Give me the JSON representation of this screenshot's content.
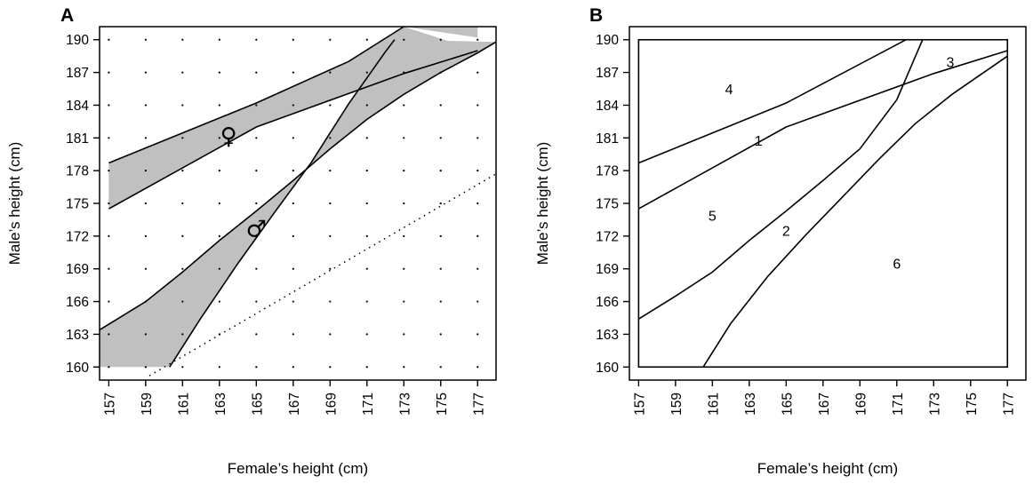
{
  "chart_data": [
    {
      "panel": "A",
      "type": "area",
      "xlabel": "Female’s height (cm)",
      "ylabel": "Male’s height (cm)",
      "xlim": [
        156.5,
        178
      ],
      "ylim": [
        158.8,
        191.2
      ],
      "xticks": [
        157,
        159,
        161,
        163,
        165,
        167,
        169,
        171,
        173,
        175,
        177
      ],
      "yticks": [
        160,
        163,
        166,
        169,
        172,
        175,
        178,
        181,
        184,
        187,
        190
      ],
      "dot_grid": true,
      "bands": [
        {
          "symbol": "♀",
          "fill": "#c0c0c0",
          "lower": {
            "x": [
              157,
              165,
              173,
              177
            ],
            "y": [
              174.5,
              182.0,
              186.9,
              189.0
            ]
          },
          "upper": {
            "x": [
              157,
              165,
              170,
              173
            ],
            "y": [
              178.7,
              184.2,
              188.0,
              191.2
            ]
          },
          "symbol_position": {
            "x": 163.5,
            "y": 181.2
          }
        },
        {
          "symbol": "♂",
          "fill": "#c0c0c0",
          "lower": {
            "x": [
              156.5,
              159,
              161,
              163,
              165,
              167,
              169,
              171,
              173,
              175,
              177,
              178
            ],
            "y": [
              163.4,
              166.0,
              168.7,
              171.6,
              174.3,
              177.1,
              180.0,
              182.7,
              185.0,
              187.0,
              188.8,
              189.8
            ]
          },
          "upper": {
            "x": [
              160.3,
              162,
              164,
              166,
              168,
              170,
              172,
              172.5
            ],
            "y": [
              160.0,
              164.5,
              169.5,
              174.2,
              178.8,
              184.1,
              188.9,
              190.0
            ]
          },
          "symbol_position": {
            "x": 165,
            "y": 172.7
          }
        }
      ],
      "fill_corners": [
        {
          "x": [
            156.5,
            160.3,
            156.5
          ],
          "y": [
            160.0,
            160.0,
            163.4
          ]
        },
        {
          "x": [
            157,
            157,
            158.2
          ],
          "y": [
            174.5,
            178.7,
            179.3
          ]
        },
        {
          "x": [
            173,
            177,
            177
          ],
          "y": [
            191.2,
            191.2,
            190.2
          ]
        }
      ],
      "dotted_line": {
        "x": [
          159.2,
          178
        ],
        "y": [
          159.2,
          177.7
        ]
      }
    },
    {
      "panel": "B",
      "type": "line",
      "xlabel": "Female’s height (cm)",
      "ylabel": "Male’s height (cm)",
      "xlim": [
        156.5,
        178
      ],
      "ylim": [
        158.8,
        191.2
      ],
      "xticks": [
        157,
        159,
        161,
        163,
        165,
        167,
        169,
        171,
        173,
        175,
        177
      ],
      "yticks": [
        160,
        163,
        166,
        169,
        172,
        175,
        178,
        181,
        184,
        187,
        190
      ],
      "box": {
        "x": [
          157,
          177
        ],
        "y": [
          160,
          190
        ]
      },
      "curves": [
        {
          "x": [
            157,
            165,
            171.5
          ],
          "y": [
            178.7,
            184.2,
            190.0
          ]
        },
        {
          "x": [
            157,
            165,
            173,
            177
          ],
          "y": [
            174.5,
            182.0,
            186.9,
            189.0
          ]
        },
        {
          "x": [
            157,
            159,
            161,
            163,
            165,
            167,
            169,
            171,
            172.4
          ],
          "y": [
            164.4,
            166.5,
            168.7,
            171.6,
            174.3,
            177.1,
            180.0,
            184.5,
            190.0
          ]
        },
        {
          "x": [
            160.5,
            162,
            164,
            166,
            168,
            170,
            172,
            174,
            177
          ],
          "y": [
            160.0,
            164.0,
            168.3,
            172.0,
            175.5,
            179.0,
            182.3,
            185.0,
            188.5
          ]
        }
      ],
      "regions": [
        {
          "label": "1",
          "x": 163.5,
          "y": 180.8
        },
        {
          "label": "2",
          "x": 165,
          "y": 172.5
        },
        {
          "label": "3",
          "x": 173.9,
          "y": 188.0
        },
        {
          "label": "4",
          "x": 161.9,
          "y": 185.5
        },
        {
          "label": "5",
          "x": 161,
          "y": 173.9
        },
        {
          "label": "6",
          "x": 171,
          "y": 169.5
        }
      ]
    }
  ]
}
